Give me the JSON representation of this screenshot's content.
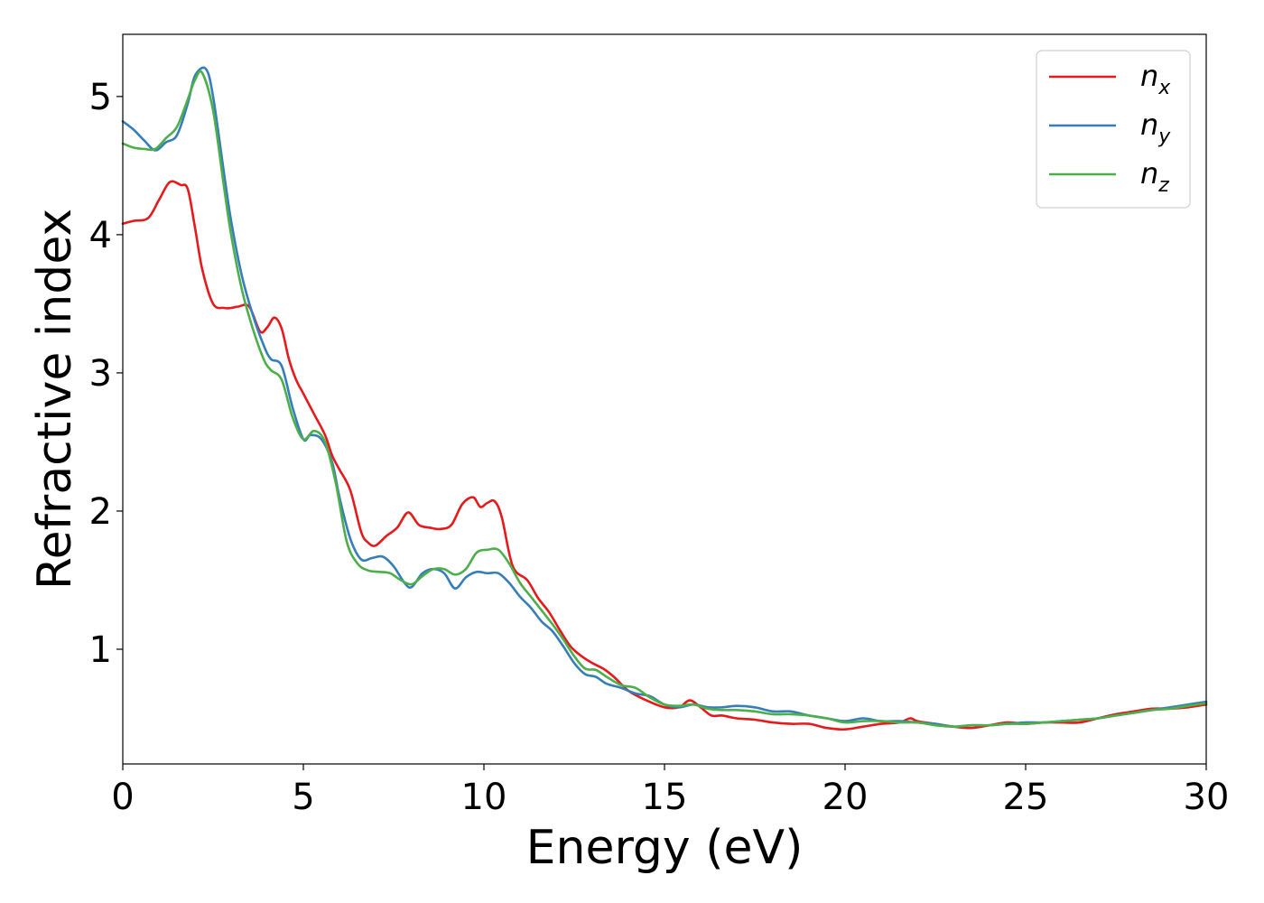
{
  "chart_data": {
    "type": "line",
    "xlabel": "Energy (eV)",
    "ylabel": "Refractive index",
    "xlim": [
      0,
      30
    ],
    "ylim": [
      0.17,
      5.45
    ],
    "xticks": [
      0,
      5,
      10,
      15,
      20,
      25,
      30
    ],
    "yticks": [
      1,
      2,
      3,
      4,
      5
    ],
    "xtick_labels": [
      "0",
      "5",
      "10",
      "15",
      "20",
      "25",
      "30"
    ],
    "ytick_labels": [
      "1",
      "2",
      "3",
      "4",
      "5"
    ],
    "grid": false,
    "legend_position": "top-right",
    "series": [
      {
        "name": "n",
        "subscript": "x",
        "color": "#e41a1c",
        "x": [
          0,
          0.3,
          0.7,
          1.0,
          1.3,
          1.6,
          1.8,
          2.0,
          2.2,
          2.5,
          2.8,
          3.0,
          3.2,
          3.5,
          3.8,
          4.0,
          4.2,
          4.4,
          4.6,
          4.8,
          5.0,
          5.3,
          5.6,
          5.8,
          6.0,
          6.3,
          6.6,
          6.8,
          7.0,
          7.3,
          7.6,
          7.9,
          8.2,
          8.5,
          8.8,
          9.1,
          9.4,
          9.7,
          9.9,
          10.1,
          10.3,
          10.5,
          10.8,
          11.2,
          11.5,
          11.8,
          12.1,
          12.4,
          12.7,
          13.0,
          13.3,
          13.6,
          14.0,
          14.5,
          15.0,
          15.4,
          15.7,
          16.0,
          16.3,
          16.6,
          17.0,
          17.5,
          18.0,
          18.5,
          19.0,
          19.5,
          20.0,
          20.5,
          21.0,
          21.5,
          21.8,
          22.0,
          22.5,
          23.0,
          23.5,
          24.0,
          24.5,
          25.0,
          25.5,
          26.0,
          26.5,
          27.0,
          27.5,
          28.0,
          28.5,
          29.0,
          29.5,
          30.0
        ],
        "values": [
          4.08,
          4.1,
          4.12,
          4.25,
          4.38,
          4.36,
          4.33,
          4.05,
          3.75,
          3.5,
          3.47,
          3.47,
          3.48,
          3.48,
          3.3,
          3.33,
          3.4,
          3.32,
          3.1,
          2.95,
          2.85,
          2.7,
          2.55,
          2.4,
          2.3,
          2.15,
          1.85,
          1.77,
          1.75,
          1.82,
          1.88,
          1.99,
          1.9,
          1.88,
          1.87,
          1.9,
          2.05,
          2.1,
          2.03,
          2.06,
          2.07,
          1.95,
          1.6,
          1.5,
          1.37,
          1.27,
          1.14,
          1.02,
          0.95,
          0.9,
          0.86,
          0.8,
          0.7,
          0.63,
          0.58,
          0.58,
          0.63,
          0.58,
          0.52,
          0.52,
          0.5,
          0.49,
          0.47,
          0.46,
          0.46,
          0.43,
          0.42,
          0.44,
          0.46,
          0.47,
          0.5,
          0.48,
          0.46,
          0.44,
          0.43,
          0.45,
          0.47,
          0.46,
          0.47,
          0.47,
          0.47,
          0.5,
          0.53,
          0.55,
          0.57,
          0.57,
          0.58,
          0.6
        ]
      },
      {
        "name": "n",
        "subscript": "y",
        "color": "#377eb8",
        "x": [
          0,
          0.3,
          0.6,
          0.9,
          1.2,
          1.5,
          1.8,
          2.0,
          2.3,
          2.5,
          2.8,
          3.0,
          3.3,
          3.6,
          3.9,
          4.1,
          4.4,
          4.7,
          5.0,
          5.2,
          5.5,
          5.8,
          6.0,
          6.3,
          6.6,
          6.9,
          7.2,
          7.5,
          7.8,
          8.0,
          8.3,
          8.6,
          8.9,
          9.2,
          9.5,
          9.8,
          10.1,
          10.4,
          10.7,
          11.0,
          11.3,
          11.6,
          11.9,
          12.2,
          12.5,
          12.8,
          13.1,
          13.4,
          13.8,
          14.2,
          14.6,
          15.0,
          15.4,
          15.8,
          16.2,
          16.6,
          17.0,
          17.5,
          18.0,
          18.5,
          19.0,
          19.5,
          20.0,
          20.5,
          21.0,
          21.5,
          22.0,
          22.5,
          23.0,
          23.5,
          24.0,
          24.5,
          25.0,
          25.5,
          26.0,
          26.5,
          27.0,
          27.5,
          28.0,
          28.5,
          29.0,
          29.5,
          30.0
        ],
        "values": [
          4.82,
          4.76,
          4.68,
          4.61,
          4.67,
          4.72,
          4.95,
          5.15,
          5.2,
          5.0,
          4.45,
          4.1,
          3.7,
          3.42,
          3.2,
          3.1,
          3.05,
          2.75,
          2.52,
          2.55,
          2.52,
          2.35,
          2.1,
          1.8,
          1.65,
          1.66,
          1.67,
          1.6,
          1.48,
          1.45,
          1.55,
          1.58,
          1.55,
          1.44,
          1.52,
          1.56,
          1.55,
          1.55,
          1.48,
          1.38,
          1.3,
          1.2,
          1.13,
          1.02,
          0.9,
          0.82,
          0.8,
          0.75,
          0.72,
          0.68,
          0.66,
          0.6,
          0.58,
          0.6,
          0.58,
          0.58,
          0.59,
          0.58,
          0.55,
          0.55,
          0.52,
          0.5,
          0.48,
          0.5,
          0.48,
          0.48,
          0.47,
          0.46,
          0.44,
          0.45,
          0.45,
          0.46,
          0.47,
          0.47,
          0.48,
          0.49,
          0.5,
          0.52,
          0.54,
          0.56,
          0.58,
          0.6,
          0.62
        ]
      },
      {
        "name": "n",
        "subscript": "z",
        "color": "#4daf4a",
        "x": [
          0,
          0.3,
          0.6,
          0.9,
          1.2,
          1.5,
          1.8,
          2.0,
          2.2,
          2.5,
          2.8,
          3.0,
          3.3,
          3.6,
          3.9,
          4.1,
          4.4,
          4.7,
          5.0,
          5.3,
          5.6,
          5.9,
          6.2,
          6.5,
          6.8,
          7.1,
          7.4,
          7.7,
          8.0,
          8.3,
          8.6,
          8.9,
          9.2,
          9.5,
          9.8,
          10.1,
          10.4,
          10.7,
          11.0,
          11.3,
          11.6,
          11.9,
          12.2,
          12.5,
          12.8,
          13.1,
          13.4,
          13.8,
          14.2,
          14.6,
          15.0,
          15.4,
          15.8,
          16.2,
          16.6,
          17.0,
          17.5,
          18.0,
          18.5,
          19.0,
          19.5,
          20.0,
          20.5,
          21.0,
          21.5,
          22.0,
          22.5,
          23.0,
          23.5,
          24.0,
          24.5,
          25.0,
          25.5,
          26.0,
          26.5,
          27.0,
          27.5,
          28.0,
          28.5,
          29.0,
          29.5,
          30.0
        ],
        "values": [
          4.66,
          4.63,
          4.62,
          4.62,
          4.7,
          4.78,
          4.98,
          5.12,
          5.17,
          4.9,
          4.35,
          4.0,
          3.6,
          3.32,
          3.1,
          3.02,
          2.95,
          2.68,
          2.52,
          2.58,
          2.5,
          2.2,
          1.78,
          1.62,
          1.57,
          1.56,
          1.55,
          1.5,
          1.47,
          1.53,
          1.58,
          1.58,
          1.54,
          1.58,
          1.7,
          1.72,
          1.72,
          1.62,
          1.48,
          1.38,
          1.28,
          1.18,
          1.07,
          0.95,
          0.86,
          0.85,
          0.8,
          0.74,
          0.72,
          0.65,
          0.6,
          0.59,
          0.6,
          0.57,
          0.56,
          0.56,
          0.55,
          0.53,
          0.53,
          0.52,
          0.5,
          0.47,
          0.48,
          0.48,
          0.47,
          0.47,
          0.45,
          0.44,
          0.45,
          0.45,
          0.46,
          0.46,
          0.47,
          0.48,
          0.49,
          0.5,
          0.52,
          0.54,
          0.56,
          0.57,
          0.59,
          0.61
        ]
      }
    ]
  }
}
